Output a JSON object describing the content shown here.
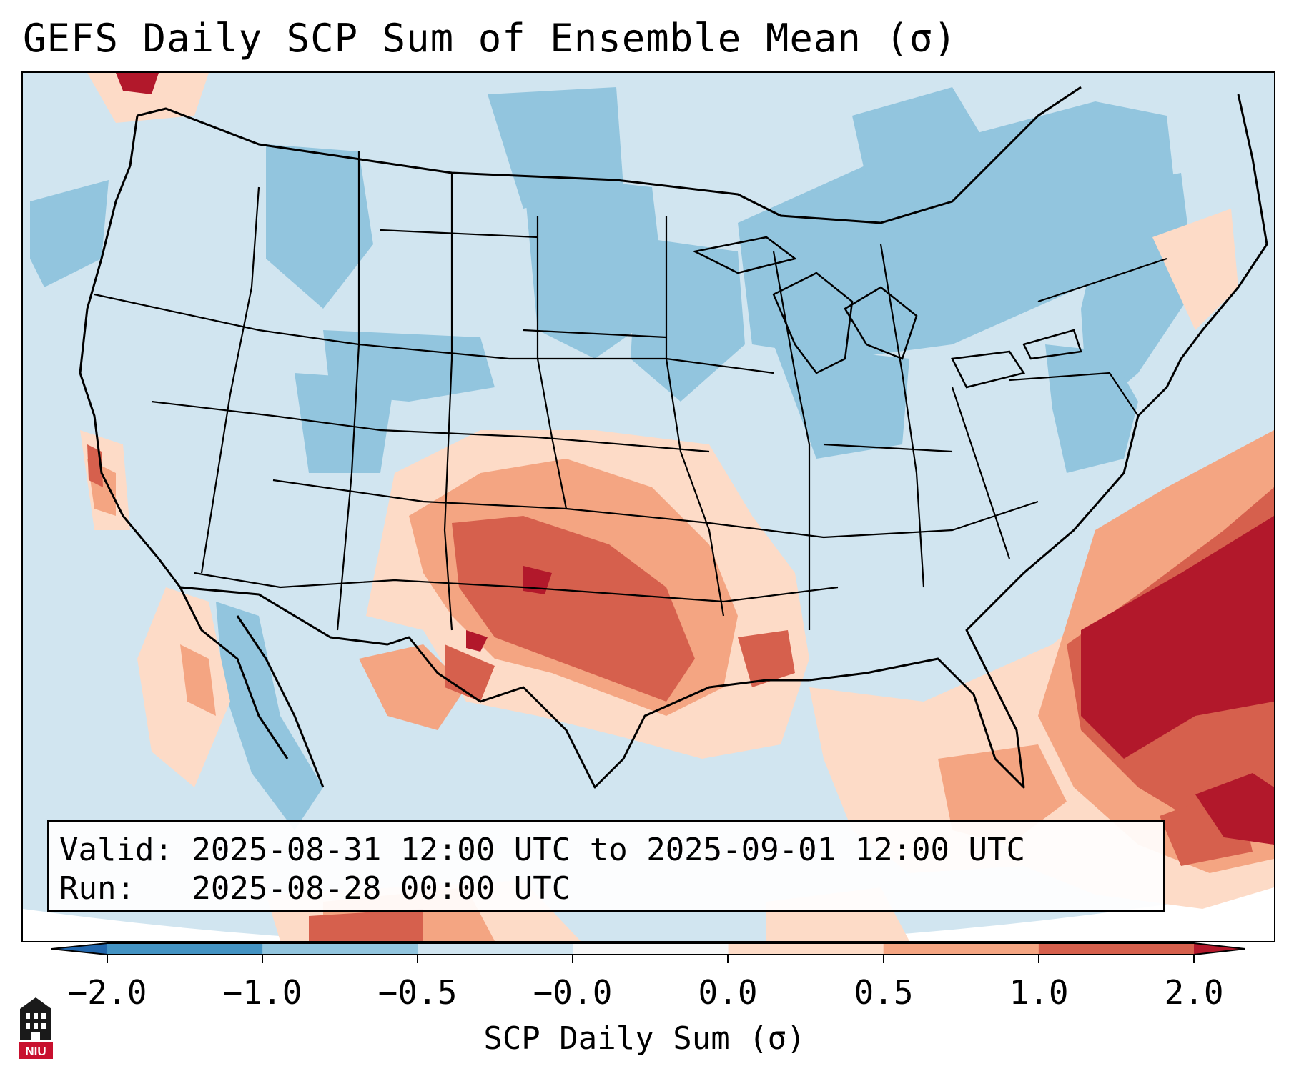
{
  "title": "GEFS Daily SCP Sum of Ensemble Mean (σ)",
  "info": {
    "valid_line": "Valid: 2025-08-31 12:00 UTC to 2025-09-01 12:00 UTC",
    "run_line": "Run:   2025-08-28 00:00 UTC"
  },
  "colorbar": {
    "label": "SCP Daily Sum (σ)",
    "ticks": [
      "−2.0",
      "−1.0",
      "−0.5",
      "−0.0",
      "0.0",
      "0.5",
      "1.0",
      "2.0"
    ],
    "colors": [
      "#4393c3",
      "#92c5de",
      "#d1e5f0",
      "#f7f7f7",
      "#fddbc7",
      "#f4a582",
      "#d6604d",
      "#b2182b"
    ],
    "extend": "both"
  },
  "logo": {
    "text": "NIU",
    "icon": "niu-logo-icon"
  }
}
